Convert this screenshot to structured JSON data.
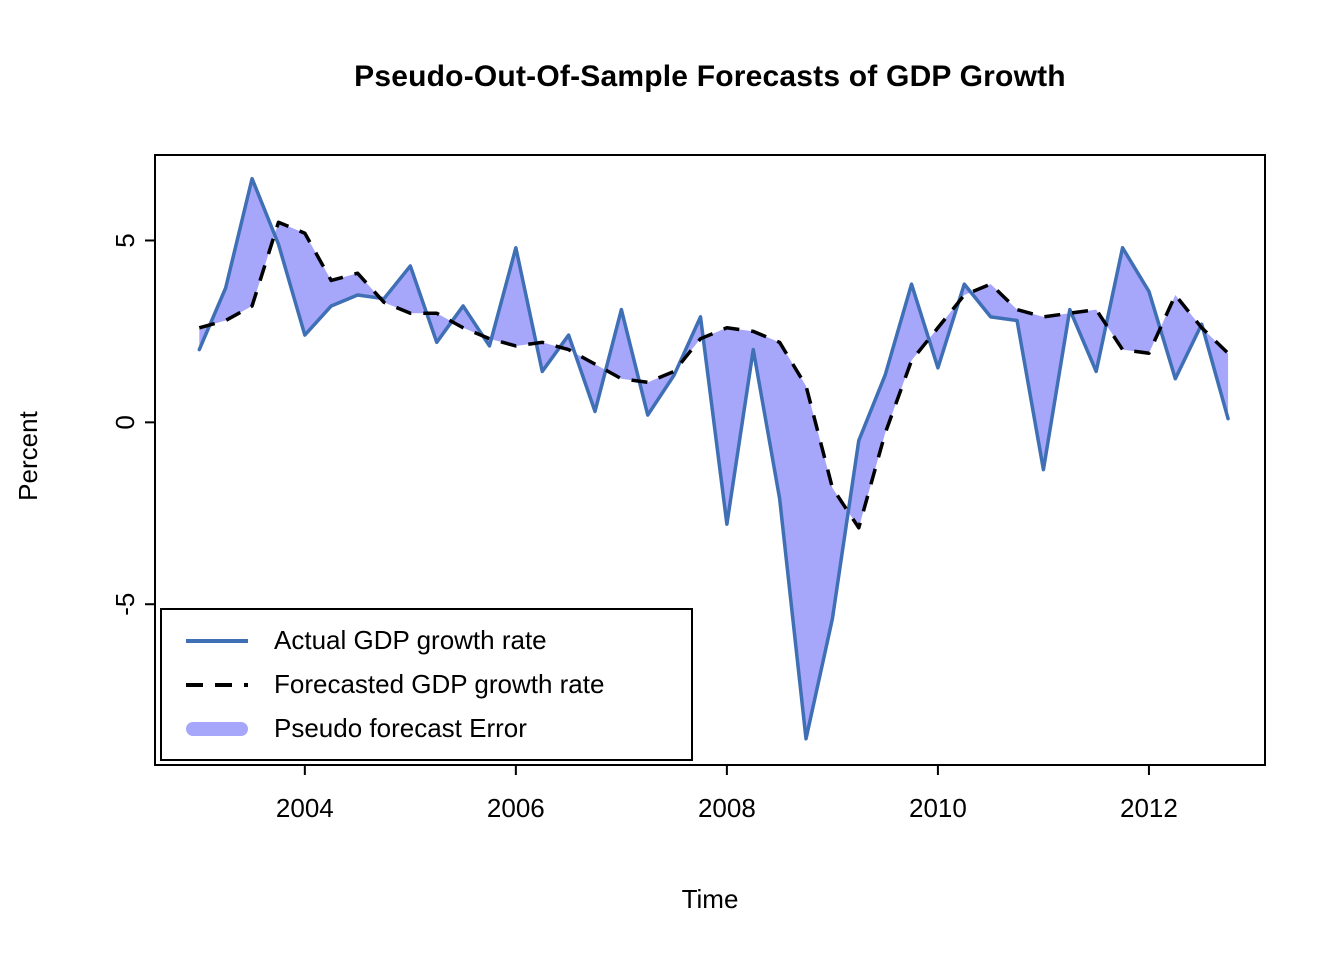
{
  "title": "Pseudo-Out-Of-Sample Forecasts of GDP Growth",
  "chart_data": {
    "type": "line",
    "title": "Pseudo-Out-Of-Sample Forecasts of GDP Growth",
    "xlabel": "Time",
    "ylabel": "Percent",
    "x_ticks": [
      2004,
      2006,
      2008,
      2010,
      2012
    ],
    "y_ticks": [
      -5,
      0,
      5
    ],
    "xlim": [
      2002.58,
      2013.1
    ],
    "ylim": [
      -9.42,
      7.35
    ],
    "grid": false,
    "x": [
      2003.0,
      2003.25,
      2003.5,
      2003.75,
      2004.0,
      2004.25,
      2004.5,
      2004.75,
      2005.0,
      2005.25,
      2005.5,
      2005.75,
      2006.0,
      2006.25,
      2006.5,
      2006.75,
      2007.0,
      2007.25,
      2007.5,
      2007.75,
      2008.0,
      2008.25,
      2008.5,
      2008.75,
      2009.0,
      2009.25,
      2009.5,
      2009.75,
      2010.0,
      2010.25,
      2010.5,
      2010.75,
      2011.0,
      2011.25,
      2011.5,
      2011.75,
      2012.0,
      2012.25,
      2012.5,
      2012.75
    ],
    "series": [
      {
        "name": "Actual GDP growth rate",
        "style": "solid",
        "color": "#3F6FB5",
        "values": [
          2.0,
          3.7,
          6.7,
          4.9,
          2.4,
          3.2,
          3.5,
          3.4,
          4.3,
          2.2,
          3.2,
          2.1,
          4.8,
          1.4,
          2.4,
          0.3,
          3.1,
          0.2,
          1.3,
          2.9,
          -2.8,
          2.0,
          -2.1,
          -8.7,
          -5.4,
          -0.5,
          1.3,
          3.8,
          1.5,
          3.8,
          2.9,
          2.8,
          -1.3,
          3.1,
          1.4,
          4.8,
          3.6,
          1.2,
          2.7,
          0.1
        ]
      },
      {
        "name": "Forecasted GDP growth rate",
        "style": "dashed",
        "color": "#000000",
        "values": [
          2.6,
          2.8,
          3.2,
          5.5,
          5.2,
          3.9,
          4.1,
          3.3,
          3.0,
          3.0,
          2.6,
          2.3,
          2.1,
          2.2,
          2.0,
          1.6,
          1.2,
          1.1,
          1.4,
          2.3,
          2.6,
          2.5,
          2.2,
          1.0,
          -1.8,
          -2.9,
          -0.3,
          1.7,
          2.6,
          3.5,
          3.8,
          3.1,
          2.9,
          3.0,
          3.1,
          2.0,
          1.9,
          3.5,
          2.6,
          1.9
        ]
      }
    ],
    "band": {
      "name": "Pseudo forecast Error",
      "color": "#A6A6FA",
      "between": [
        "Actual GDP growth rate",
        "Forecasted GDP growth rate"
      ]
    },
    "legend": {
      "position": "bottom-left",
      "entries": [
        {
          "label": "Actual GDP growth rate",
          "swatch": "solid-line",
          "color": "#3F6FB5"
        },
        {
          "label": "Forecasted GDP growth rate",
          "swatch": "dashed-line",
          "color": "#000000"
        },
        {
          "label": "Pseudo forecast Error",
          "swatch": "band",
          "color": "#A6A6FA"
        }
      ]
    }
  }
}
